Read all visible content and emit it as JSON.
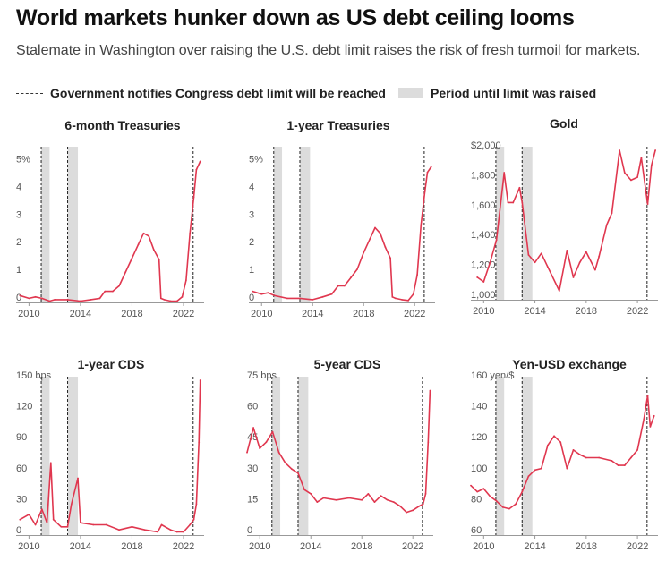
{
  "title": "World markets hunker down as US debt ceiling looms",
  "subtitle": "Stalemate in Washington over raising the U.S. debt limit raises the risk of fresh turmoil for markets.",
  "legend": {
    "dashed_label": "Government notifies Congress debt limit will be reached",
    "band_label": "Period until limit was raised"
  },
  "colors": {
    "line": "#e0374f",
    "band": "#dcdcdc",
    "dash": "#222222"
  },
  "events": {
    "notify_dates": [
      2010.95,
      2013.0,
      2022.75
    ],
    "raised_periods": [
      [
        2010.95,
        2011.6
      ],
      [
        2013.0,
        2013.8
      ]
    ]
  },
  "chart_data": [
    {
      "type": "line",
      "title": "6-month Treasuries",
      "x": [
        2009.3,
        2010.0,
        2010.5,
        2011.0,
        2011.6,
        2012.0,
        2013.0,
        2014.0,
        2014.8,
        2015.5,
        2015.9,
        2016.5,
        2017.0,
        2017.5,
        2018.0,
        2018.5,
        2018.9,
        2019.3,
        2019.7,
        2020.1,
        2020.25,
        2020.5,
        2021.0,
        2021.5,
        2021.9,
        2022.2,
        2022.5,
        2022.8,
        2023.0,
        2023.3
      ],
      "values": [
        0.25,
        0.15,
        0.2,
        0.15,
        0.05,
        0.1,
        0.1,
        0.05,
        0.1,
        0.15,
        0.4,
        0.4,
        0.6,
        1.1,
        1.6,
        2.1,
        2.5,
        2.4,
        1.9,
        1.55,
        0.15,
        0.1,
        0.05,
        0.05,
        0.2,
        0.8,
        2.5,
        3.8,
        4.8,
        5.1
      ],
      "ylim": [
        0,
        5.5
      ],
      "yticks": [
        0,
        1,
        2,
        3,
        4,
        5
      ],
      "ytick_labels": [
        "0",
        "1",
        "2",
        "3",
        "4",
        "5%"
      ],
      "xlim": [
        2009,
        2023.6
      ],
      "xticks": [
        2010,
        2014,
        2018,
        2022
      ]
    },
    {
      "type": "line",
      "title": "1-year Treasuries",
      "x": [
        2009.3,
        2010.0,
        2010.5,
        2011.0,
        2012.0,
        2013.0,
        2014.0,
        2014.8,
        2015.5,
        2016.0,
        2016.5,
        2017.0,
        2017.5,
        2018.0,
        2018.5,
        2018.9,
        2019.3,
        2019.7,
        2020.1,
        2020.25,
        2020.5,
        2021.0,
        2021.5,
        2021.9,
        2022.2,
        2022.5,
        2022.8,
        2023.0,
        2023.3
      ],
      "values": [
        0.4,
        0.3,
        0.35,
        0.25,
        0.15,
        0.15,
        0.1,
        0.2,
        0.3,
        0.6,
        0.6,
        0.9,
        1.2,
        1.8,
        2.3,
        2.7,
        2.5,
        2.0,
        1.6,
        0.2,
        0.15,
        0.1,
        0.07,
        0.3,
        1.0,
        2.8,
        4.0,
        4.7,
        4.9
      ],
      "ylim": [
        0,
        5.5
      ],
      "yticks": [
        0,
        1,
        2,
        3,
        4,
        5
      ],
      "ytick_labels": [
        "0",
        "1",
        "2",
        "3",
        "4",
        "5%"
      ],
      "xlim": [
        2009,
        2023.6
      ],
      "xticks": [
        2010,
        2014,
        2018,
        2022
      ]
    },
    {
      "type": "line",
      "title": "Gold",
      "x": [
        2009.5,
        2010.0,
        2010.5,
        2011.0,
        2011.6,
        2011.9,
        2012.3,
        2012.8,
        2013.0,
        2013.5,
        2014.0,
        2014.5,
        2015.0,
        2015.9,
        2016.5,
        2017.0,
        2017.5,
        2018.0,
        2018.7,
        2019.0,
        2019.6,
        2020.0,
        2020.6,
        2021.0,
        2021.5,
        2022.0,
        2022.3,
        2022.8,
        2023.1,
        2023.4
      ],
      "values": [
        1150,
        1120,
        1250,
        1400,
        1850,
        1650,
        1650,
        1750,
        1650,
        1300,
        1250,
        1310,
        1220,
        1060,
        1330,
        1150,
        1250,
        1320,
        1200,
        1290,
        1500,
        1580,
        2000,
        1850,
        1800,
        1820,
        1950,
        1640,
        1900,
        2000
      ],
      "ylim": [
        1000,
        2000
      ],
      "yticks": [
        1000,
        1200,
        1400,
        1600,
        1800,
        2000
      ],
      "ytick_labels": [
        "1,000",
        "1,200",
        "1,400",
        "1,600",
        "1,800",
        "$2,000"
      ],
      "xlim": [
        2009,
        2023.6
      ],
      "xticks": [
        2010,
        2014,
        2018,
        2022
      ]
    },
    {
      "type": "line",
      "title": "1-year CDS",
      "x": [
        2009.3,
        2010.0,
        2010.5,
        2011.0,
        2011.4,
        2011.7,
        2011.9,
        2012.5,
        2013.0,
        2013.3,
        2013.8,
        2014.0,
        2015.0,
        2016.0,
        2017.0,
        2018.0,
        2019.0,
        2020.0,
        2020.3,
        2021.0,
        2021.5,
        2022.0,
        2022.5,
        2022.8,
        2023.0,
        2023.2,
        2023.3
      ],
      "values": [
        15,
        20,
        10,
        25,
        12,
        70,
        15,
        8,
        8,
        30,
        55,
        12,
        10,
        10,
        5,
        8,
        5,
        3,
        10,
        5,
        3,
        3,
        10,
        15,
        30,
        90,
        150
      ],
      "ylim": [
        0,
        150
      ],
      "yticks": [
        0,
        30,
        60,
        90,
        120,
        150
      ],
      "ytick_labels": [
        "0",
        "30",
        "60",
        "90",
        "120",
        "150 bps"
      ],
      "xlim": [
        2009,
        2023.6
      ],
      "xticks": [
        2010,
        2014,
        2018,
        2022
      ]
    },
    {
      "type": "line",
      "title": "5-year CDS",
      "x": [
        2009.0,
        2009.5,
        2010.0,
        2010.5,
        2011.0,
        2011.5,
        2012.0,
        2012.5,
        2013.0,
        2013.5,
        2014.0,
        2014.5,
        2015.0,
        2016.0,
        2017.0,
        2018.0,
        2018.5,
        2019.0,
        2019.5,
        2020.0,
        2020.5,
        2021.0,
        2021.5,
        2022.0,
        2022.5,
        2022.8,
        2023.0,
        2023.2,
        2023.35
      ],
      "values": [
        40,
        52,
        42,
        45,
        50,
        40,
        35,
        32,
        30,
        22,
        20,
        16,
        18,
        17,
        18,
        17,
        20,
        16,
        19,
        17,
        16,
        14,
        11,
        12,
        14,
        15,
        20,
        45,
        70
      ],
      "ylim": [
        0,
        75
      ],
      "yticks": [
        0,
        15,
        30,
        45,
        60,
        75
      ],
      "ytick_labels": [
        "0",
        "15",
        "30",
        "45",
        "60",
        "75 bps"
      ],
      "xlim": [
        2009,
        2023.6
      ],
      "xticks": [
        2010,
        2014,
        2018,
        2022
      ]
    },
    {
      "type": "line",
      "title": "Yen-USD exchange",
      "x": [
        2009.0,
        2009.5,
        2010.0,
        2010.5,
        2011.0,
        2011.5,
        2012.0,
        2012.5,
        2013.0,
        2013.5,
        2014.0,
        2014.5,
        2015.0,
        2015.5,
        2016.0,
        2016.5,
        2017.0,
        2017.5,
        2018.0,
        2019.0,
        2020.0,
        2020.5,
        2021.0,
        2021.5,
        2022.0,
        2022.5,
        2022.8,
        2023.0,
        2023.3
      ],
      "values": [
        92,
        88,
        90,
        85,
        82,
        78,
        77,
        80,
        88,
        98,
        102,
        103,
        118,
        124,
        120,
        103,
        115,
        112,
        110,
        110,
        108,
        105,
        105,
        110,
        115,
        135,
        150,
        130,
        137
      ],
      "ylim": [
        60,
        160
      ],
      "yticks": [
        60,
        80,
        100,
        120,
        140,
        160
      ],
      "ytick_labels": [
        "60",
        "80",
        "100",
        "120",
        "140",
        "160 yen/$"
      ],
      "xlim": [
        2009,
        2023.6
      ],
      "xticks": [
        2010,
        2014,
        2018,
        2022
      ]
    }
  ]
}
